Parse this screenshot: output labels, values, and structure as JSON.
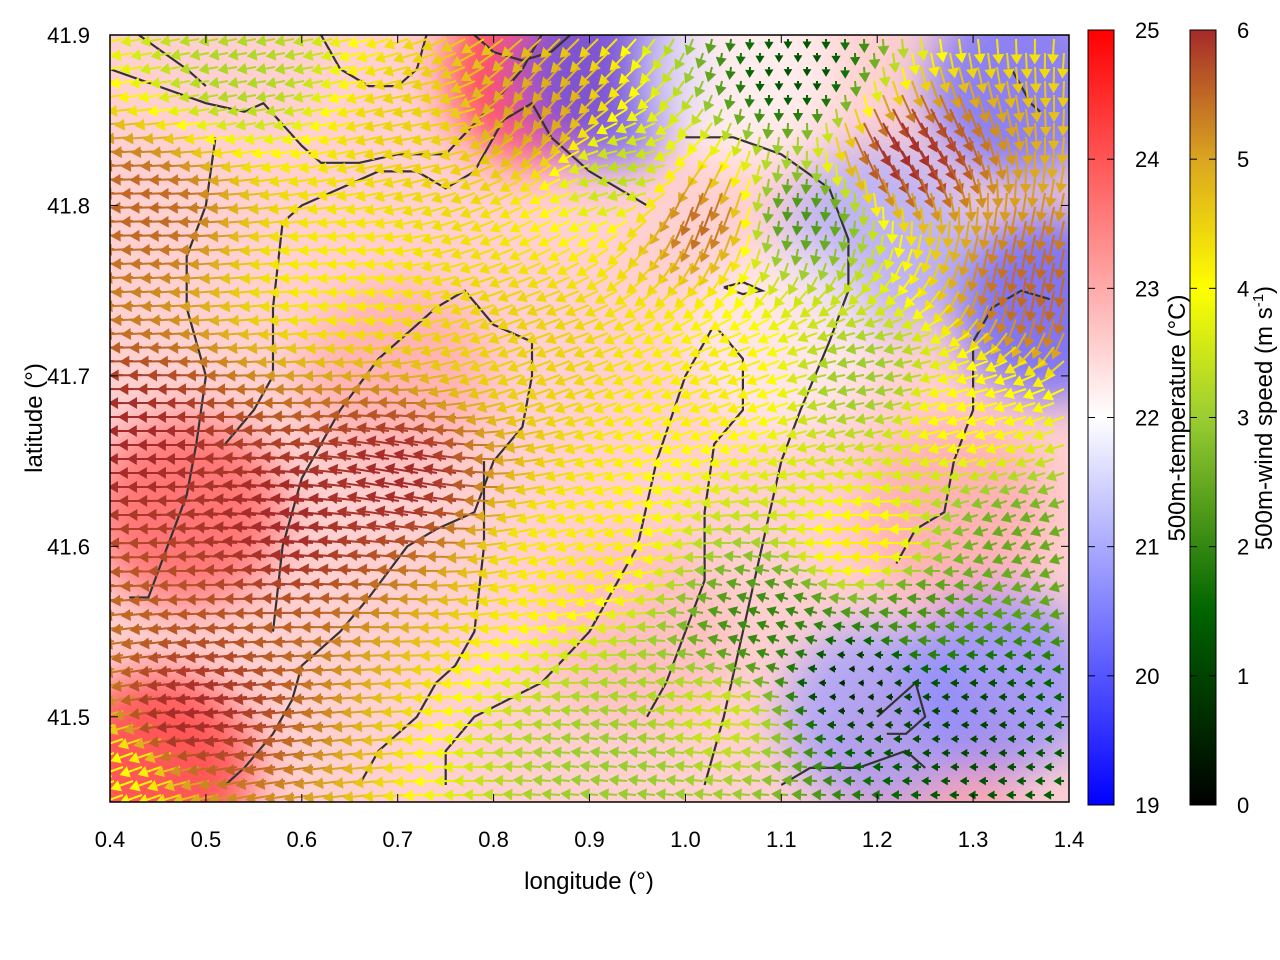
{
  "chart_data": {
    "type": "heatmap",
    "subtype": "vector-field-over-heatmap",
    "xlabel": "longitude (°)",
    "ylabel": "latitude (°)",
    "xlim": [
      0.4,
      1.4
    ],
    "ylim": [
      41.45,
      41.9
    ],
    "x_ticks": [
      "0.4",
      "0.5",
      "0.6",
      "0.7",
      "0.8",
      "0.9",
      "1.0",
      "1.1",
      "1.2",
      "1.3",
      "1.4"
    ],
    "y_ticks": [
      "41.5",
      "41.6",
      "41.7",
      "41.8",
      "41.9"
    ],
    "grid": false,
    "temperature_colorbar": {
      "label": "500m-temperature (°C)",
      "range": [
        19,
        25
      ],
      "ticks": [
        "19",
        "20",
        "21",
        "22",
        "23",
        "24",
        "25"
      ],
      "colors": {
        "low": "#0000ff",
        "mid": "#ffffff",
        "high": "#ff0000"
      }
    },
    "wind_colorbar": {
      "label_text": "500m-wind speed (m s",
      "label_sup": "-1",
      "label_close": ")",
      "range": [
        0,
        6
      ],
      "ticks": [
        "0",
        "1",
        "2",
        "3",
        "4",
        "5",
        "6"
      ],
      "colors": [
        "#000000",
        "#006400",
        "#9acd32",
        "#ffff00",
        "#daa520",
        "#a52a2a"
      ]
    },
    "temperature_regions_degC": [
      {
        "lon": 0.48,
        "lat": 41.62,
        "value": 24.0
      },
      {
        "lon": 0.45,
        "lat": 41.47,
        "value": 24.5
      },
      {
        "lon": 0.85,
        "lat": 41.88,
        "value": 24.6
      },
      {
        "lon": 0.7,
        "lat": 41.7,
        "value": 23.0
      },
      {
        "lon": 0.95,
        "lat": 41.55,
        "value": 22.8
      },
      {
        "lon": 1.25,
        "lat": 41.47,
        "value": 23.2
      },
      {
        "lon": 1.28,
        "lat": 41.62,
        "value": 23.0
      },
      {
        "lon": 0.92,
        "lat": 41.88,
        "value": 20.0
      },
      {
        "lon": 1.2,
        "lat": 41.78,
        "value": 21.0
      },
      {
        "lon": 1.38,
        "lat": 41.74,
        "value": 20.0
      },
      {
        "lon": 1.2,
        "lat": 41.5,
        "value": 20.8
      },
      {
        "lon": 1.33,
        "lat": 41.52,
        "value": 20.6
      },
      {
        "lon": 1.35,
        "lat": 41.87,
        "value": 20.2
      },
      {
        "lon": 1.06,
        "lat": 41.88,
        "value": 22.1
      },
      {
        "lon": 1.1,
        "lat": 41.72,
        "value": 22.2
      }
    ],
    "wind_regions_ms": [
      {
        "lon": 0.45,
        "lat": 41.66,
        "speed": 6.0,
        "dir": 180
      },
      {
        "lon": 0.6,
        "lat": 41.62,
        "speed": 6.0,
        "dir": 175
      },
      {
        "lon": 0.72,
        "lat": 41.64,
        "speed": 6.0,
        "dir": 170
      },
      {
        "lon": 0.5,
        "lat": 41.5,
        "speed": 6.0,
        "dir": 185
      },
      {
        "lon": 0.45,
        "lat": 41.8,
        "speed": 5.5,
        "dir": 182
      },
      {
        "lon": 0.65,
        "lat": 41.76,
        "speed": 4.2,
        "dir": 185
      },
      {
        "lon": 0.85,
        "lat": 41.72,
        "speed": 4.5,
        "dir": 200
      },
      {
        "lon": 0.9,
        "lat": 41.6,
        "speed": 4.2,
        "dir": 195
      },
      {
        "lon": 0.95,
        "lat": 41.82,
        "speed": 3.3,
        "dir": 190
      },
      {
        "lon": 0.55,
        "lat": 41.88,
        "speed": 3.2,
        "dir": 190
      },
      {
        "lon": 1.05,
        "lat": 41.7,
        "speed": 4.2,
        "dir": 200
      },
      {
        "lon": 1.02,
        "lat": 41.8,
        "speed": 5.5,
        "dir": 250
      },
      {
        "lon": 1.12,
        "lat": 41.8,
        "speed": 2.2,
        "dir": 265
      },
      {
        "lon": 1.12,
        "lat": 41.88,
        "speed": 1.2,
        "dir": 270
      },
      {
        "lon": 1.22,
        "lat": 41.84,
        "speed": 6.0,
        "dir": 300
      },
      {
        "lon": 1.2,
        "lat": 41.7,
        "speed": 3.0,
        "dir": 190
      },
      {
        "lon": 1.3,
        "lat": 41.68,
        "speed": 4.0,
        "dir": 195
      },
      {
        "lon": 1.2,
        "lat": 41.6,
        "speed": 4.2,
        "dir": 180
      },
      {
        "lon": 1.18,
        "lat": 41.52,
        "speed": 0.6,
        "dir": 180
      },
      {
        "lon": 1.3,
        "lat": 41.5,
        "speed": 1.0,
        "dir": 180
      },
      {
        "lon": 1.1,
        "lat": 41.55,
        "speed": 2.0,
        "dir": 160
      },
      {
        "lon": 1.25,
        "lat": 41.56,
        "speed": 2.2,
        "dir": 175
      },
      {
        "lon": 1.05,
        "lat": 41.5,
        "speed": 3.5,
        "dir": 175
      },
      {
        "lon": 0.95,
        "lat": 41.47,
        "speed": 3.0,
        "dir": 175
      },
      {
        "lon": 0.42,
        "lat": 41.47,
        "speed": 4.0,
        "dir": 200
      },
      {
        "lon": 1.37,
        "lat": 41.76,
        "speed": 5.5,
        "dir": 260
      },
      {
        "lon": 1.35,
        "lat": 41.6,
        "speed": 2.5,
        "dir": 200
      },
      {
        "lon": 0.75,
        "lat": 41.85,
        "speed": 4.5,
        "dir": 190
      },
      {
        "lon": 0.85,
        "lat": 41.86,
        "speed": 5.0,
        "dir": 230
      }
    ],
    "contours": [
      [
        [
          0.4,
          41.88
        ],
        [
          0.45,
          41.87
        ],
        [
          0.5,
          41.86
        ],
        [
          0.54,
          41.855
        ],
        [
          0.56,
          41.86
        ],
        [
          0.6,
          41.835
        ],
        [
          0.62,
          41.825
        ],
        [
          0.66,
          41.825
        ],
        [
          0.7,
          41.83
        ],
        [
          0.75,
          41.83
        ],
        [
          0.8,
          41.86
        ],
        [
          0.83,
          41.88
        ],
        [
          0.85,
          41.9
        ]
      ],
      [
        [
          0.43,
          41.9
        ],
        [
          0.48,
          41.88
        ],
        [
          0.5,
          41.87
        ]
      ],
      [
        [
          0.62,
          41.9
        ],
        [
          0.64,
          41.88
        ],
        [
          0.67,
          41.87
        ],
        [
          0.7,
          41.87
        ],
        [
          0.72,
          41.88
        ],
        [
          0.73,
          41.9
        ]
      ],
      [
        [
          0.78,
          41.9
        ],
        [
          0.8,
          41.89
        ],
        [
          0.83,
          41.885
        ],
        [
          0.86,
          41.89
        ],
        [
          0.88,
          41.9
        ]
      ],
      [
        [
          0.42,
          41.57
        ],
        [
          0.44,
          41.57
        ],
        [
          0.46,
          41.6
        ],
        [
          0.48,
          41.63
        ],
        [
          0.49,
          41.66
        ],
        [
          0.5,
          41.7
        ],
        [
          0.48,
          41.74
        ],
        [
          0.48,
          41.77
        ],
        [
          0.5,
          41.8
        ],
        [
          0.51,
          41.84
        ]
      ],
      [
        [
          0.52,
          41.66
        ],
        [
          0.55,
          41.68
        ],
        [
          0.57,
          41.7
        ],
        [
          0.57,
          41.74
        ],
        [
          0.58,
          41.79
        ],
        [
          0.6,
          41.8
        ],
        [
          0.64,
          41.81
        ],
        [
          0.68,
          41.82
        ],
        [
          0.72,
          41.82
        ],
        [
          0.75,
          41.81
        ],
        [
          0.78,
          41.82
        ],
        [
          0.8,
          41.84
        ],
        [
          0.81,
          41.85
        ],
        [
          0.84,
          41.86
        ],
        [
          0.86,
          41.84
        ],
        [
          0.88,
          41.83
        ],
        [
          0.9,
          41.82
        ],
        [
          0.93,
          41.81
        ],
        [
          0.96,
          41.8
        ]
      ],
      [
        [
          0.52,
          41.46
        ],
        [
          0.54,
          41.47
        ],
        [
          0.57,
          41.49
        ],
        [
          0.59,
          41.51
        ],
        [
          0.6,
          41.53
        ],
        [
          0.64,
          41.55
        ],
        [
          0.67,
          41.57
        ],
        [
          0.71,
          41.6
        ],
        [
          0.74,
          41.61
        ],
        [
          0.78,
          41.62
        ],
        [
          0.8,
          41.65
        ],
        [
          0.83,
          41.67
        ],
        [
          0.84,
          41.7
        ],
        [
          0.84,
          41.72
        ],
        [
          0.8,
          41.73
        ],
        [
          0.77,
          41.75
        ],
        [
          0.74,
          41.74
        ],
        [
          0.72,
          41.73
        ],
        [
          0.68,
          41.71
        ],
        [
          0.64,
          41.68
        ],
        [
          0.6,
          41.64
        ],
        [
          0.58,
          41.6
        ],
        [
          0.57,
          41.55
        ]
      ],
      [
        [
          0.66,
          41.46
        ],
        [
          0.68,
          41.48
        ],
        [
          0.72,
          41.5
        ],
        [
          0.74,
          41.52
        ],
        [
          0.76,
          41.53
        ],
        [
          0.78,
          41.55
        ],
        [
          0.79,
          41.6
        ],
        [
          0.79,
          41.65
        ]
      ],
      [
        [
          0.75,
          41.46
        ],
        [
          0.75,
          41.48
        ],
        [
          0.78,
          41.5
        ],
        [
          0.85,
          41.52
        ],
        [
          0.9,
          41.55
        ],
        [
          0.93,
          41.58
        ],
        [
          0.95,
          41.6
        ],
        [
          0.97,
          41.65
        ],
        [
          1.0,
          41.7
        ],
        [
          1.03,
          41.73
        ],
        [
          1.06,
          41.71
        ],
        [
          1.06,
          41.68
        ],
        [
          1.03,
          41.66
        ],
        [
          1.02,
          41.62
        ],
        [
          1.02,
          41.58
        ],
        [
          1.0,
          41.55
        ],
        [
          0.98,
          41.52
        ],
        [
          0.96,
          41.5
        ]
      ],
      [
        [
          1.02,
          41.46
        ],
        [
          1.04,
          41.5
        ],
        [
          1.06,
          41.55
        ],
        [
          1.08,
          41.6
        ],
        [
          1.1,
          41.65
        ],
        [
          1.12,
          41.68
        ],
        [
          1.15,
          41.72
        ],
        [
          1.17,
          41.75
        ],
        [
          1.17,
          41.78
        ],
        [
          1.15,
          41.81
        ],
        [
          1.1,
          41.83
        ],
        [
          1.05,
          41.84
        ],
        [
          1.0,
          41.84
        ]
      ],
      [
        [
          1.1,
          41.46
        ],
        [
          1.13,
          41.47
        ],
        [
          1.18,
          41.47
        ],
        [
          1.23,
          41.48
        ],
        [
          1.25,
          41.47
        ]
      ],
      [
        [
          1.2,
          41.5
        ],
        [
          1.24,
          41.52
        ],
        [
          1.25,
          41.5
        ],
        [
          1.23,
          41.49
        ],
        [
          1.21,
          41.49
        ]
      ],
      [
        [
          1.22,
          41.59
        ],
        [
          1.24,
          41.61
        ],
        [
          1.27,
          41.62
        ],
        [
          1.28,
          41.65
        ],
        [
          1.3,
          41.68
        ],
        [
          1.3,
          41.72
        ],
        [
          1.32,
          41.74
        ],
        [
          1.35,
          41.75
        ],
        [
          1.38,
          41.745
        ]
      ],
      [
        [
          1.34,
          41.88
        ],
        [
          1.35,
          41.87
        ],
        [
          1.36,
          41.86
        ],
        [
          1.37,
          41.855
        ]
      ],
      [
        [
          1.04,
          41.752
        ],
        [
          1.06,
          41.755
        ],
        [
          1.08,
          41.75
        ],
        [
          1.06,
          41.748
        ],
        [
          1.04,
          41.752
        ]
      ]
    ]
  }
}
